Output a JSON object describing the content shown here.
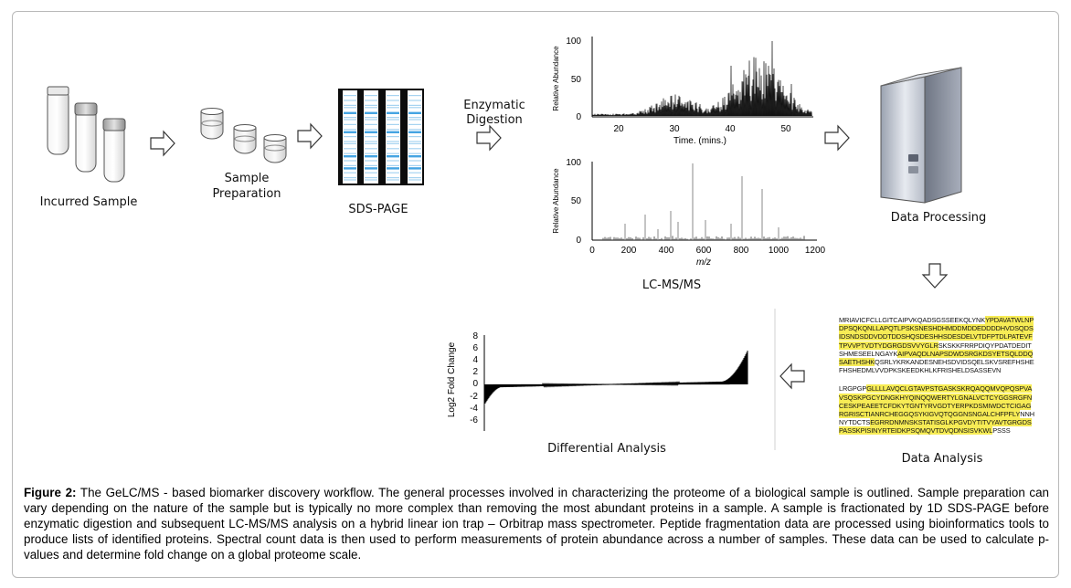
{
  "labels": {
    "incurred_sample": "Incurred  Sample",
    "sample_prep_1": "Sample",
    "sample_prep_2": "Preparation",
    "sds_page": "SDS-PAGE",
    "enzymatic_1": "Enzymatic",
    "enzymatic_2": "Digestion",
    "lcms": "LC-MS/MS",
    "data_processing": "Data Processing",
    "data_analysis": "Data Analysis",
    "differential_analysis": "Differential Analysis"
  },
  "chromatogram": {
    "ylabel": "Relative Abundance",
    "xlabel": "Time. (mins.)",
    "yticks": [
      "100",
      "50",
      "0"
    ],
    "xticks": [
      "20",
      "30",
      "40",
      "50"
    ]
  },
  "spectrum": {
    "ylabel": "Relative Abundance",
    "xlabel": "m/z",
    "yticks": [
      "100",
      "50",
      "0"
    ],
    "xticks": [
      "0",
      "200",
      "400",
      "600",
      "800",
      "1000",
      "1200"
    ]
  },
  "fold_plot": {
    "ylabel": "Log2 Fold Change",
    "yticks": [
      "8",
      "6",
      "4",
      "2",
      "0",
      "-2",
      "-4",
      "-6"
    ]
  },
  "sequence_blocks": [
    [
      {
        "t": "MRIAVICFCLLGITCAIPVKQADSGSSEEKQLYNK",
        "h": false
      },
      {
        "t": "YPD",
        "h": true
      },
      {
        "t": "AVATWLNPDPSQKQNLLAPQTLPSKSNESHDHMDD",
        "h": true
      },
      {
        "t": "MDDEDDDDHVDSQDSIDSNDSDDVDDTDDSHQSDE",
        "h": true
      },
      {
        "t": "SHHSDESDELVTDFPTDLPATEVFTPVVPTVDTYDGR",
        "h": true
      },
      {
        "t": "GDSVVYGLR",
        "h": true
      },
      {
        "t": "SKSKKFRRPDIQYPDATDEDITSHMESE",
        "h": false
      },
      {
        "t": "ELNGAYK",
        "h": false
      },
      {
        "t": "AIPVAQDLNAPSDWDSRGKDSYETSQLDD",
        "h": true
      },
      {
        "t": "QSAETHSHK",
        "h": true
      },
      {
        "t": "QSRLYKRKANDESNEHSDVIDSQELSK",
        "h": false
      },
      {
        "t": "VSREFHSHEFHSHEDMLVVDPKSKEEDKHLKFRISH",
        "h": false
      },
      {
        "t": "ELDSASSEVN",
        "h": false
      }
    ],
    [
      {
        "t": "LRGPGP",
        "h": false
      },
      {
        "t": "GLLLLAVQCLGTAVPSTGASKSKRQAQQMV",
        "h": true
      },
      {
        "t": "QPQSPVAVSQSKPGCYDNGKHYQINQQWERTYLGN",
        "h": true
      },
      {
        "t": "ALVCTCYGGSRGFNCESKPEAEETCFDKYTGNTYRV",
        "h": true
      },
      {
        "t": "GDTYERPKDSMIWDCTCIGAGRGRISCTIANRCHEG",
        "h": true
      },
      {
        "t": "GQSYKIGVQTQGGNSNGALCHFPFLY",
        "h": true
      },
      {
        "t": "NNHNYTDCTS",
        "h": false
      },
      {
        "t": "EGRRDNMNSKSTATISGLKPGVDYTITVYAVTGRGD",
        "h": true
      },
      {
        "t": "SPASSKPISINYRTEIDKPSQMQVTDVQDNSISVKWL",
        "h": true
      },
      {
        "t": "PSSS",
        "h": false
      }
    ]
  ],
  "caption": {
    "label": "Figure 2:",
    "text": " The GeLC/MS - based biomarker discovery workflow. The general processes involved in characterizing the proteome of a biological sample is outlined. Sample preparation can vary depending on the nature of the sample but is typically no more complex than removing the most abundant proteins in a sample. A sample is fractionated by 1D SDS-PAGE before enzymatic digestion and subsequent LC-MS/MS analysis on a hybrid linear ion trap – Orbitrap mass spectrometer. Peptide fragmentation data are processed using bioinformatics tools to produce lists of identified proteins. Spectral count data is then used to perform measurements of protein abundance across a number of samples. These data can be used to calculate p-values and determine fold change on a global proteome scale."
  },
  "colors": {
    "gel_band": "#3b9fe0",
    "highlight": "#f7ec55",
    "computer_body": "#c9ced8"
  }
}
